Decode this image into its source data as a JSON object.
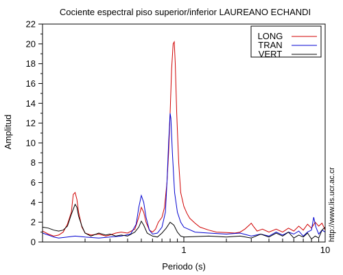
{
  "chart_data": {
    "type": "line",
    "title": "Cociente espectral piso superior/inferior LAUREANO ECHANDI",
    "xlabel": "Periodo (s)",
    "ylabel": "Amplitud",
    "x_scale": "log",
    "xlim": [
      0.1,
      10
    ],
    "ylim": [
      0,
      22
    ],
    "x_tick_labels": [
      {
        "value": 1,
        "label": "1"
      },
      {
        "value": 10,
        "label": "10"
      }
    ],
    "y_ticks": [
      0,
      2,
      4,
      6,
      8,
      10,
      12,
      14,
      16,
      18,
      20,
      22
    ],
    "grid": false,
    "legend_position": "top-right",
    "annotation": "http://www.lis.ucr.ac.cr",
    "series": [
      {
        "name": "LONG",
        "color": "#d00000",
        "points": [
          [
            0.1,
            1.1
          ],
          [
            0.11,
            0.8
          ],
          [
            0.12,
            0.6
          ],
          [
            0.13,
            0.7
          ],
          [
            0.14,
            1.0
          ],
          [
            0.15,
            1.8
          ],
          [
            0.16,
            3.0
          ],
          [
            0.165,
            4.8
          ],
          [
            0.17,
            5.0
          ],
          [
            0.175,
            4.3
          ],
          [
            0.18,
            3.0
          ],
          [
            0.19,
            1.5
          ],
          [
            0.2,
            0.9
          ],
          [
            0.22,
            0.7
          ],
          [
            0.25,
            0.8
          ],
          [
            0.28,
            0.6
          ],
          [
            0.3,
            0.7
          ],
          [
            0.33,
            0.9
          ],
          [
            0.36,
            1.0
          ],
          [
            0.4,
            0.9
          ],
          [
            0.45,
            1.3
          ],
          [
            0.48,
            2.5
          ],
          [
            0.5,
            3.5
          ],
          [
            0.52,
            3.0
          ],
          [
            0.54,
            2.0
          ],
          [
            0.57,
            1.2
          ],
          [
            0.6,
            1.0
          ],
          [
            0.63,
            1.3
          ],
          [
            0.66,
            2.0
          ],
          [
            0.7,
            2.5
          ],
          [
            0.73,
            3.5
          ],
          [
            0.76,
            6.0
          ],
          [
            0.78,
            9.0
          ],
          [
            0.8,
            13.0
          ],
          [
            0.82,
            17.5
          ],
          [
            0.84,
            20.0
          ],
          [
            0.855,
            20.2
          ],
          [
            0.87,
            18.0
          ],
          [
            0.89,
            13.0
          ],
          [
            0.92,
            8.0
          ],
          [
            0.95,
            5.0
          ],
          [
            1.0,
            3.6
          ],
          [
            1.05,
            2.9
          ],
          [
            1.1,
            2.4
          ],
          [
            1.2,
            1.9
          ],
          [
            1.3,
            1.5
          ],
          [
            1.5,
            1.2
          ],
          [
            1.7,
            1.0
          ],
          [
            2.0,
            0.95
          ],
          [
            2.3,
            0.9
          ],
          [
            2.5,
            1.0
          ],
          [
            2.7,
            1.3
          ],
          [
            2.9,
            1.7
          ],
          [
            3.0,
            1.9
          ],
          [
            3.1,
            1.6
          ],
          [
            3.3,
            1.1
          ],
          [
            3.6,
            1.3
          ],
          [
            4.0,
            1.0
          ],
          [
            4.5,
            1.3
          ],
          [
            5.0,
            1.0
          ],
          [
            5.5,
            1.4
          ],
          [
            6.0,
            1.1
          ],
          [
            6.5,
            1.6
          ],
          [
            7.0,
            1.2
          ],
          [
            7.5,
            1.8
          ],
          [
            8.0,
            1.4
          ],
          [
            8.5,
            2.0
          ],
          [
            9.0,
            1.6
          ],
          [
            9.5,
            1.9
          ],
          [
            10.0,
            1.2
          ]
        ]
      },
      {
        "name": "TRAN",
        "color": "#0000d0",
        "points": [
          [
            0.1,
            0.9
          ],
          [
            0.11,
            0.7
          ],
          [
            0.12,
            0.5
          ],
          [
            0.13,
            0.4
          ],
          [
            0.15,
            0.5
          ],
          [
            0.17,
            0.6
          ],
          [
            0.2,
            0.5
          ],
          [
            0.25,
            0.4
          ],
          [
            0.3,
            0.5
          ],
          [
            0.36,
            0.6
          ],
          [
            0.42,
            0.8
          ],
          [
            0.46,
            1.8
          ],
          [
            0.48,
            3.5
          ],
          [
            0.5,
            4.7
          ],
          [
            0.52,
            4.0
          ],
          [
            0.54,
            2.5
          ],
          [
            0.57,
            1.2
          ],
          [
            0.6,
            0.8
          ],
          [
            0.65,
            0.9
          ],
          [
            0.7,
            1.5
          ],
          [
            0.74,
            3.0
          ],
          [
            0.76,
            6.0
          ],
          [
            0.78,
            10.0
          ],
          [
            0.8,
            13.0
          ],
          [
            0.81,
            12.5
          ],
          [
            0.83,
            9.0
          ],
          [
            0.86,
            5.0
          ],
          [
            0.9,
            3.0
          ],
          [
            0.95,
            2.0
          ],
          [
            1.0,
            1.5
          ],
          [
            1.2,
            1.0
          ],
          [
            1.5,
            0.9
          ],
          [
            2.0,
            0.8
          ],
          [
            2.5,
            0.9
          ],
          [
            3.0,
            0.6
          ],
          [
            3.5,
            0.8
          ],
          [
            4.0,
            0.6
          ],
          [
            4.5,
            1.0
          ],
          [
            5.0,
            0.7
          ],
          [
            5.5,
            1.0
          ],
          [
            6.0,
            0.8
          ],
          [
            6.5,
            1.1
          ],
          [
            7.0,
            0.6
          ],
          [
            7.5,
            1.0
          ],
          [
            8.0,
            1.2
          ],
          [
            8.3,
            2.5
          ],
          [
            8.6,
            1.5
          ],
          [
            9.0,
            0.8
          ],
          [
            9.5,
            1.2
          ],
          [
            10.0,
            1.0
          ]
        ]
      },
      {
        "name": "VERT",
        "color": "#000000",
        "points": [
          [
            0.1,
            1.5
          ],
          [
            0.11,
            1.4
          ],
          [
            0.12,
            1.2
          ],
          [
            0.13,
            1.1
          ],
          [
            0.14,
            1.2
          ],
          [
            0.15,
            1.6
          ],
          [
            0.16,
            2.8
          ],
          [
            0.17,
            3.8
          ],
          [
            0.175,
            3.5
          ],
          [
            0.18,
            2.6
          ],
          [
            0.19,
            1.6
          ],
          [
            0.2,
            0.9
          ],
          [
            0.22,
            0.6
          ],
          [
            0.25,
            0.9
          ],
          [
            0.28,
            0.7
          ],
          [
            0.3,
            0.8
          ],
          [
            0.33,
            0.6
          ],
          [
            0.36,
            0.7
          ],
          [
            0.4,
            0.6
          ],
          [
            0.45,
            1.0
          ],
          [
            0.48,
            1.5
          ],
          [
            0.5,
            2.1
          ],
          [
            0.52,
            1.7
          ],
          [
            0.55,
            0.9
          ],
          [
            0.6,
            0.6
          ],
          [
            0.65,
            0.5
          ],
          [
            0.7,
            0.9
          ],
          [
            0.75,
            1.4
          ],
          [
            0.8,
            2.0
          ],
          [
            0.85,
            1.7
          ],
          [
            0.9,
            1.0
          ],
          [
            0.95,
            0.6
          ],
          [
            1.0,
            0.5
          ],
          [
            1.5,
            0.6
          ],
          [
            2.0,
            0.5
          ],
          [
            2.5,
            0.6
          ],
          [
            3.0,
            0.4
          ],
          [
            3.5,
            0.8
          ],
          [
            4.0,
            0.5
          ],
          [
            4.5,
            0.9
          ],
          [
            5.0,
            0.6
          ],
          [
            5.5,
            1.0
          ],
          [
            6.0,
            0.4
          ],
          [
            6.5,
            0.7
          ],
          [
            7.0,
            0.5
          ],
          [
            7.5,
            0.9
          ],
          [
            8.0,
            0.3
          ],
          [
            8.5,
            0.6
          ],
          [
            9.0,
            0.4
          ],
          [
            9.5,
            1.2
          ],
          [
            10.0,
            1.5
          ]
        ]
      }
    ]
  }
}
